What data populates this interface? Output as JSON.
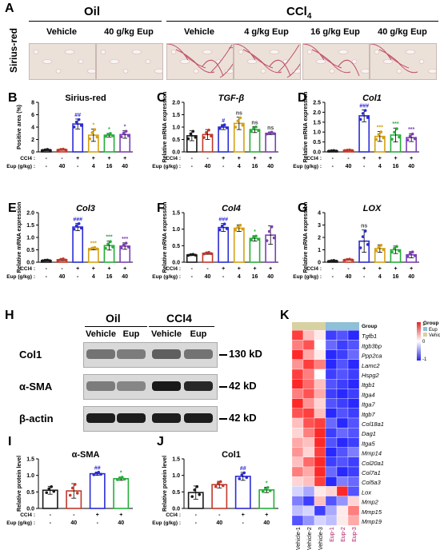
{
  "panel_letters": {
    "a": "A",
    "b": "B",
    "c": "C",
    "d": "D",
    "e": "E",
    "f": "F",
    "g": "G",
    "h": "H",
    "i": "I",
    "j": "J",
    "k": "K"
  },
  "panel_a": {
    "row_label": "Sirius-red",
    "group_oil": "Oil",
    "group_ccl4": "CCl4",
    "images": [
      "Vehicle",
      "40 g/kg Eup",
      "Vehicle",
      "4 g/kg Eup",
      "16 g/kg Eup",
      "40 g/kg Eup"
    ]
  },
  "dose_table": {
    "ccl4_label": "CCl4",
    "eup_label": "Eup (g/kg)",
    "ccl4_5": [
      "-",
      "-",
      "+",
      "+",
      "+",
      "+"
    ],
    "eup_6": [
      "-",
      "40",
      "-",
      "4",
      "16",
      "40"
    ],
    "ccl4_4": [
      "-",
      "-",
      "+",
      "+"
    ],
    "eup_4": [
      "-",
      "40",
      "-",
      "40"
    ]
  },
  "chart_data": [
    {
      "id": "B",
      "type": "bar",
      "title": "Sirius-red",
      "ylabel": "Positive area (%)",
      "ylim": [
        0,
        8
      ],
      "yticks": [
        0,
        2,
        4,
        6,
        8
      ],
      "values": [
        0.3,
        0.35,
        4.5,
        2.7,
        2.7,
        2.8
      ],
      "errors": [
        0.1,
        0.1,
        0.8,
        1.0,
        0.3,
        0.6
      ],
      "annotations": [
        "",
        "",
        "##",
        "*",
        "*",
        "*"
      ]
    },
    {
      "id": "C",
      "type": "bar",
      "title": "TGF-β",
      "ylabel": "Relative mRNA expression",
      "ylim": [
        0,
        2.0
      ],
      "yticks": [
        0.0,
        0.5,
        1.0,
        1.5,
        2.0
      ],
      "values": [
        0.65,
        0.7,
        1.0,
        1.15,
        0.9,
        0.75
      ],
      "errors": [
        0.2,
        0.2,
        0.1,
        0.25,
        0.12,
        0.05
      ],
      "annotations": [
        "",
        "",
        "#",
        "ns",
        "ns",
        "ns"
      ]
    },
    {
      "id": "D",
      "type": "bar",
      "title": "Col1",
      "ylabel": "Relative mRNA expression",
      "ylim": [
        0,
        2.5
      ],
      "yticks": [
        0.0,
        0.5,
        1.0,
        1.5,
        2.0,
        2.5
      ],
      "values": [
        0.05,
        0.08,
        1.82,
        0.78,
        0.85,
        0.72
      ],
      "errors": [
        0.02,
        0.02,
        0.3,
        0.25,
        0.35,
        0.2
      ],
      "annotations": [
        "",
        "",
        "###",
        "***",
        "***",
        "***"
      ]
    },
    {
      "id": "E",
      "type": "bar",
      "title": "Col3",
      "ylabel": "Relative mRNA expression",
      "ylim": [
        0,
        2.0
      ],
      "yticks": [
        0.0,
        0.5,
        1.0,
        1.5,
        2.0
      ],
      "values": [
        0.07,
        0.1,
        1.42,
        0.55,
        0.67,
        0.65
      ],
      "errors": [
        0.02,
        0.04,
        0.15,
        0.05,
        0.18,
        0.13
      ],
      "annotations": [
        "",
        "",
        "###",
        "***",
        "***",
        "***"
      ]
    },
    {
      "id": "F",
      "type": "bar",
      "title": "Col4",
      "ylabel": "Relative mRNA expression",
      "ylim": [
        0,
        1.5
      ],
      "yticks": [
        0.0,
        0.5,
        1.0,
        1.5
      ],
      "values": [
        0.22,
        0.27,
        1.05,
        1.03,
        0.72,
        0.82
      ],
      "errors": [
        0.02,
        0.03,
        0.12,
        0.1,
        0.08,
        0.28
      ],
      "annotations": [
        "",
        "",
        "###",
        "",
        "*",
        ""
      ]
    },
    {
      "id": "G",
      "type": "bar",
      "title": "LOX",
      "ylabel": "Relative mRNA expression",
      "ylim": [
        0,
        4
      ],
      "yticks": [
        0,
        1,
        2,
        3,
        4
      ],
      "values": [
        0.1,
        0.2,
        1.7,
        1.1,
        1.0,
        0.6
      ],
      "errors": [
        0.05,
        0.05,
        0.9,
        0.3,
        0.3,
        0.25
      ],
      "annotations": [
        "",
        "",
        "ns",
        "",
        "",
        ""
      ]
    },
    {
      "id": "I",
      "type": "bar",
      "title": "α-SMA",
      "ylabel": "Relative protein level",
      "ylim": [
        0,
        1.5
      ],
      "yticks": [
        0.0,
        0.5,
        1.0,
        1.5
      ],
      "values": [
        0.55,
        0.53,
        1.05,
        0.9
      ],
      "errors": [
        0.12,
        0.22,
        0.05,
        0.05
      ],
      "annotations": [
        "",
        "",
        "##",
        "*"
      ]
    },
    {
      "id": "J",
      "type": "bar",
      "title": "Col1",
      "ylabel": "Relative protein level",
      "ylim": [
        0,
        1.5
      ],
      "yticks": [
        0.0,
        0.5,
        1.0,
        1.5
      ],
      "values": [
        0.48,
        0.72,
        0.97,
        0.56
      ],
      "errors": [
        0.2,
        0.1,
        0.12,
        0.08
      ],
      "annotations": [
        "",
        "",
        "##",
        "*"
      ]
    }
  ],
  "colors6": [
    "#1a1a1a",
    "#c0392b",
    "#2b2bd6",
    "#d4a017",
    "#27ae3a",
    "#7b3fb5"
  ],
  "colors4": [
    "#1a1a1a",
    "#c0392b",
    "#2b2bd6",
    "#27ae3a"
  ],
  "western": {
    "group_oil": "Oil",
    "group_ccl4": "CCl4",
    "lanes": [
      "Vehicle",
      "Eup",
      "Vehicle",
      "Eup"
    ],
    "rows": [
      {
        "protein": "Col1",
        "size": "130 kD",
        "intensity": [
          0.45,
          0.4,
          0.55,
          0.45
        ]
      },
      {
        "protein": "α-SMA",
        "size": "42 kD",
        "intensity": [
          0.4,
          0.35,
          0.92,
          0.85
        ]
      },
      {
        "protein": "β-actin",
        "size": "42 kD",
        "intensity": [
          0.9,
          0.9,
          0.9,
          0.9
        ]
      }
    ]
  },
  "heatmap": {
    "genes": [
      "Group",
      "Tgfb1",
      "Itgb3bp",
      "Ppp2ca",
      "Lamc2",
      "Hspg2",
      "Itgb1",
      "Itga4",
      "Itga7",
      "Itgb7",
      "Col18a1",
      "Dag1",
      "Itga5",
      "Mmp14",
      "Col20a1",
      "Col7a1",
      "Col5a3",
      "Lox",
      "Mmp2",
      "Mmp15",
      "Mmp19"
    ],
    "samples": [
      "Vehicle-1",
      "Vehicle-2",
      "Vehicle-3",
      "Eup-1",
      "Eup-2",
      "Eup-3"
    ],
    "values": [
      [
        0.9,
        0.3,
        0.1,
        -0.9,
        -0.8,
        -1.0
      ],
      [
        0.6,
        0.8,
        0.0,
        -0.7,
        -0.9,
        -0.8
      ],
      [
        1.0,
        0.4,
        0.1,
        -1.0,
        -0.9,
        -0.7
      ],
      [
        0.5,
        0.9,
        0.6,
        -1.0,
        -0.8,
        -1.0
      ],
      [
        0.9,
        0.6,
        0.0,
        -0.9,
        -0.8,
        -0.9
      ],
      [
        1.0,
        0.7,
        0.3,
        -0.8,
        -0.9,
        -1.0
      ],
      [
        0.6,
        0.8,
        0.4,
        -0.9,
        -1.0,
        -0.9
      ],
      [
        1.0,
        0.5,
        0.2,
        -0.8,
        -0.9,
        -1.0
      ],
      [
        0.8,
        0.9,
        0.3,
        -1.0,
        -0.8,
        -0.9
      ],
      [
        0.3,
        0.8,
        0.9,
        -0.7,
        -1.0,
        -0.8
      ],
      [
        0.2,
        0.6,
        1.0,
        -0.9,
        -0.7,
        -0.8
      ],
      [
        0.4,
        0.3,
        1.0,
        -0.8,
        -1.0,
        -0.9
      ],
      [
        0.5,
        0.2,
        0.9,
        -1.0,
        -0.8,
        -0.6
      ],
      [
        0.3,
        0.7,
        1.0,
        -0.9,
        -0.8,
        -0.9
      ],
      [
        0.6,
        0.4,
        1.0,
        -0.7,
        -1.0,
        -0.9
      ],
      [
        0.2,
        0.3,
        0.9,
        -1.0,
        -0.6,
        -0.7
      ],
      [
        -0.2,
        -0.4,
        0.1,
        0.2,
        1.0,
        -0.8
      ],
      [
        -0.6,
        -0.9,
        0.3,
        -0.8,
        -0.5,
        0.2
      ],
      [
        -0.3,
        -0.2,
        -0.9,
        -0.4,
        0.1,
        0.6
      ],
      [
        -0.8,
        -0.5,
        -0.2,
        -0.3,
        0.1,
        0.4
      ]
    ],
    "legend_title": "Group",
    "legend_items": [
      "Eup",
      "Vehicle"
    ],
    "scale_ticks": [
      "1",
      "0",
      "-1"
    ]
  }
}
